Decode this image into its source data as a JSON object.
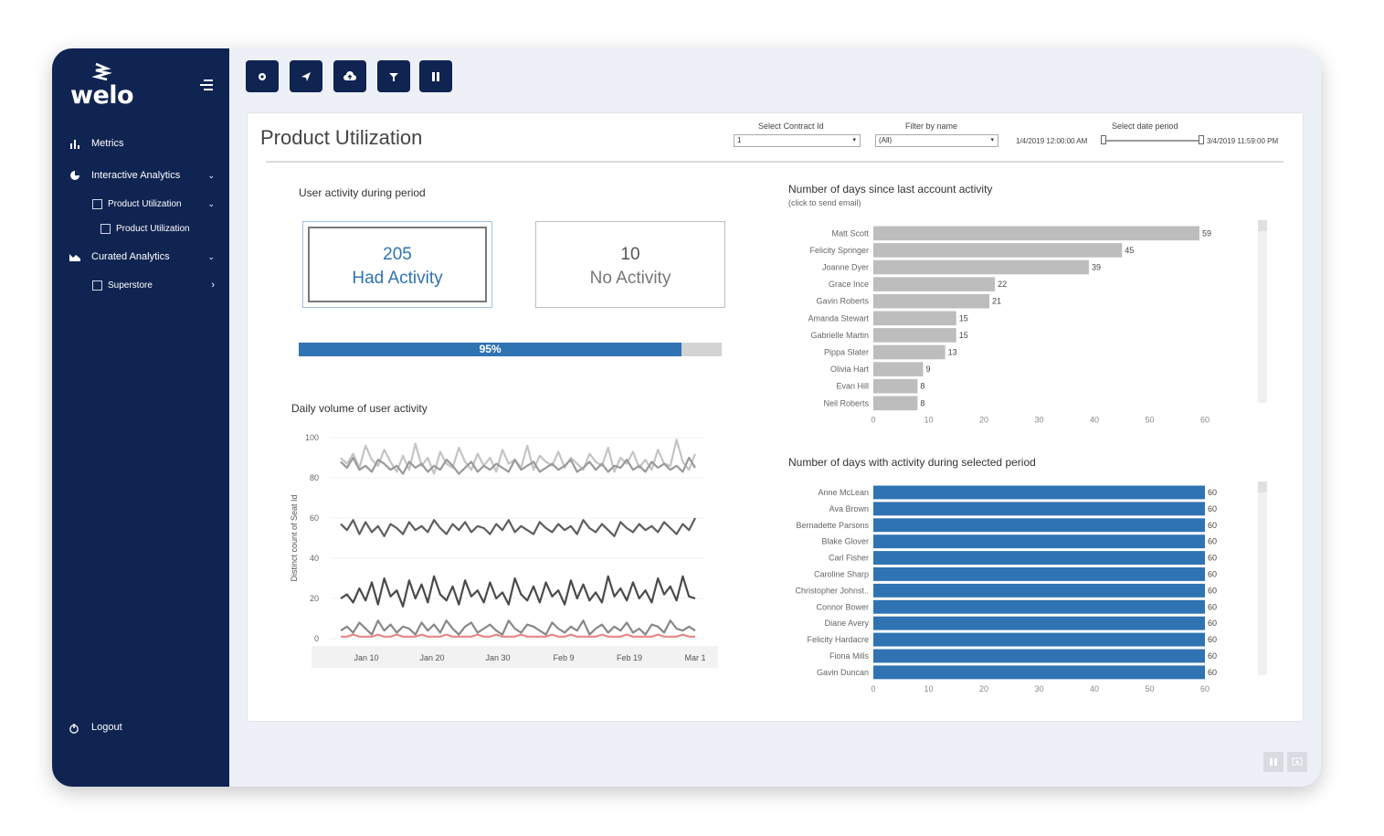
{
  "app": {
    "brand": "welo"
  },
  "sidebar": {
    "items": [
      {
        "label": "Metrics"
      },
      {
        "label": "Interactive Analytics"
      },
      {
        "label": "Product Utilization"
      },
      {
        "label": "Product Utilization"
      },
      {
        "label": "Curated Analytics"
      },
      {
        "label": "Superstore"
      }
    ],
    "logout": "Logout"
  },
  "toolbar": {
    "icons": [
      "eye-icon",
      "send-icon",
      "cloud-upload-icon",
      "filter-icon",
      "pause-icon"
    ]
  },
  "page": {
    "title": "Product Utilization"
  },
  "filters": {
    "contract": {
      "label": "Select Contract Id",
      "value": "1"
    },
    "name": {
      "label": "Filter by name",
      "value": "(All)"
    },
    "date": {
      "label": "Select date period",
      "start": "1/4/2019 12:00:00 AM",
      "end": "3/4/2019 11:59:00 PM"
    }
  },
  "activity": {
    "title": "User activity during period",
    "had": {
      "value": "205",
      "label": "Had Activity"
    },
    "none": {
      "value": "10",
      "label": "No Activity"
    },
    "progress": 0.95,
    "progress_label": "95%"
  },
  "colors": {
    "sidebar": "#102452",
    "accent": "#2f73b3",
    "bar_grey": "#bdbdbd",
    "kpi_blue": "#2f73b3"
  },
  "chart_data": [
    {
      "type": "bar",
      "title": "Number of days since last account activity",
      "subtitle": "(click to send email)",
      "orientation": "horizontal",
      "categories": [
        "Matt Scott",
        "Felicity Springer",
        "Joanne Dyer",
        "Grace Ince",
        "Gavin Roberts",
        "Amanda Stewart",
        "Gabrielle Martin",
        "Pippa Slater",
        "Olivia Hart",
        "Evan Hill",
        "Neil Roberts"
      ],
      "values": [
        59,
        45,
        39,
        22,
        21,
        15,
        15,
        13,
        9,
        8,
        8
      ],
      "xticks": [
        "0",
        "10",
        "20",
        "30",
        "40",
        "50",
        "60"
      ],
      "xlim": [
        0,
        60
      ],
      "color": "#bdbdbd"
    },
    {
      "type": "bar",
      "title": "Number of days with activity during selected period",
      "orientation": "horizontal",
      "categories": [
        "Anne McLean",
        "Ava Brown",
        "Bernadette Parsons",
        "Blake Glover",
        "Carl Fisher",
        "Caroline Sharp",
        "Christopher Johnst..",
        "Connor Bower",
        "Diane Avery",
        "Felicity Hardacre",
        "Fiona Mills",
        "Gavin Duncan"
      ],
      "values": [
        60,
        60,
        60,
        60,
        60,
        60,
        60,
        60,
        60,
        60,
        60,
        60
      ],
      "xticks": [
        "0",
        "10",
        "20",
        "30",
        "40",
        "50",
        "60"
      ],
      "xlim": [
        0,
        60
      ],
      "color": "#2f73b3"
    },
    {
      "type": "line",
      "title": "Daily volume of user activity",
      "ylabel": "Distinct count of Seat Id",
      "ylim": [
        0,
        100
      ],
      "yticks": [
        "0",
        "20",
        "40",
        "60",
        "80",
        "100"
      ],
      "xticks": [
        "Jan 10",
        "Jan 20",
        "Jan 30",
        "Feb 9",
        "Feb 19",
        "Mar 1"
      ],
      "series": [
        {
          "color": "#c4c4c4",
          "values": [
            90,
            87,
            92,
            85,
            96,
            89,
            86,
            94,
            88,
            83,
            91,
            84,
            97,
            86,
            90,
            82,
            93,
            87,
            85,
            95,
            88,
            84,
            92,
            86,
            90,
            83,
            94,
            87,
            89,
            85,
            96,
            84,
            91,
            88,
            86,
            93,
            85,
            90,
            87,
            84,
            92,
            88,
            86,
            95,
            83,
            90,
            87,
            93,
            85,
            89,
            84,
            94,
            87,
            86,
            99,
            88,
            84,
            92
          ]
        },
        {
          "color": "#9a9a9a",
          "values": [
            88,
            85,
            90,
            84,
            86,
            83,
            89,
            87,
            84,
            86,
            82,
            88,
            85,
            87,
            83,
            86,
            84,
            89,
            86,
            82,
            85,
            88,
            83,
            86,
            84,
            87,
            85,
            83,
            89,
            84,
            86,
            88,
            83,
            85,
            87,
            84,
            86,
            89,
            83,
            85,
            88,
            84,
            87,
            83,
            86,
            85,
            89,
            84,
            86,
            83,
            88,
            85,
            87,
            84,
            86,
            83,
            90,
            85
          ]
        },
        {
          "color": "#5e5e5e",
          "values": [
            57,
            54,
            59,
            52,
            58,
            53,
            56,
            51,
            57,
            55,
            52,
            58,
            54,
            56,
            53,
            59,
            55,
            52,
            57,
            54,
            58,
            53,
            56,
            55,
            52,
            57,
            54,
            59,
            53,
            56,
            54,
            52,
            58,
            55,
            53,
            57,
            54,
            56,
            52,
            59,
            55,
            53,
            57,
            54,
            51,
            58,
            55,
            53,
            57,
            54,
            56,
            53,
            58,
            55,
            52,
            57,
            54,
            60
          ]
        },
        {
          "color": "#4a4a4a",
          "values": [
            20,
            22,
            18,
            25,
            19,
            28,
            17,
            30,
            21,
            24,
            16,
            29,
            20,
            27,
            18,
            31,
            22,
            19,
            26,
            17,
            29,
            21,
            24,
            18,
            28,
            20,
            23,
            17,
            30,
            22,
            19,
            26,
            18,
            28,
            21,
            24,
            17,
            29,
            20,
            27,
            19,
            23,
            18,
            31,
            21,
            25,
            19,
            28,
            20,
            24,
            18,
            30,
            22,
            26,
            19,
            31,
            21,
            20
          ]
        },
        {
          "color": "#888888",
          "values": [
            4,
            6,
            3,
            8,
            5,
            2,
            9,
            4,
            7,
            3,
            6,
            5,
            2,
            8,
            4,
            7,
            3,
            9,
            5,
            2,
            6,
            8,
            3,
            5,
            7,
            4,
            2,
            9,
            5,
            3,
            7,
            6,
            4,
            2,
            8,
            5,
            3,
            6,
            4,
            9,
            2,
            5,
            7,
            3,
            6,
            4,
            8,
            3,
            5,
            2,
            7,
            6,
            3,
            9,
            5,
            4,
            6,
            4
          ]
        },
        {
          "color": "#e8888a",
          "values": [
            1,
            1,
            2,
            1,
            1,
            1,
            2,
            1,
            1,
            2,
            1,
            1,
            1,
            2,
            1,
            1,
            1,
            2,
            1,
            1,
            1,
            1,
            2,
            1,
            1,
            2,
            1,
            1,
            1,
            2,
            1,
            1,
            1,
            1,
            2,
            1,
            1,
            2,
            1,
            1,
            1,
            1,
            2,
            1,
            1,
            1,
            2,
            1,
            1,
            1,
            1,
            2,
            1,
            1,
            1,
            2,
            1,
            1
          ]
        }
      ]
    }
  ]
}
